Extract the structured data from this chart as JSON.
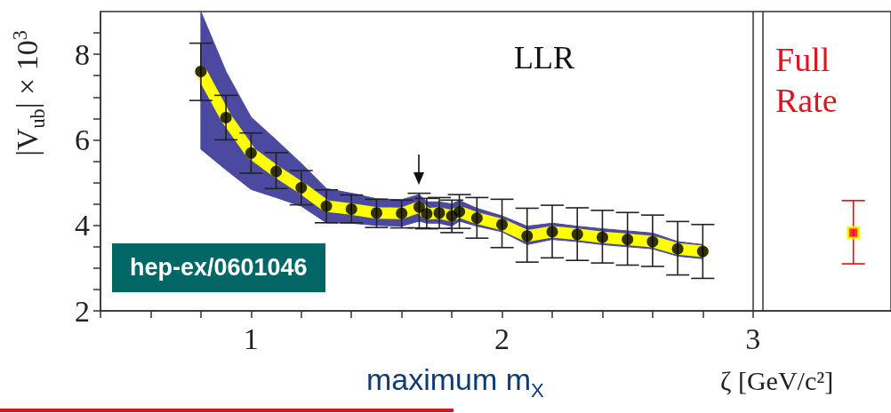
{
  "chart_data": {
    "type": "line",
    "xlabel": "ζ [GeV/c²]",
    "ylabel": "|V$_{ub}$| × 10$^{3}$",
    "annotations": [
      "LLR",
      "Full Rate",
      "hep-ex/0601046",
      "maximum m$_{X}$"
    ],
    "xlim": [
      0.4,
      3.55
    ],
    "xticks": [
      {
        "value": 0.4,
        "label": null
      },
      {
        "value": 0.6,
        "label": null
      },
      {
        "value": 0.8,
        "label": null
      },
      1,
      {
        "value": 1.2,
        "label": null
      },
      {
        "value": 1.4,
        "label": null
      },
      {
        "value": 1.6,
        "label": null
      },
      {
        "value": 1.8,
        "label": null
      },
      2,
      {
        "value": 2.2,
        "label": null
      },
      {
        "value": 2.4,
        "label": null
      },
      {
        "value": 2.6,
        "label": null
      },
      {
        "value": 2.8,
        "label": null
      },
      3
    ],
    "ylim": [
      2,
      9
    ],
    "yticks": [
      2,
      {
        "value": 2.5,
        "label": null
      },
      {
        "value": 3,
        "label": null
      },
      {
        "value": 3.5,
        "label": null
      },
      4,
      {
        "value": 4.5,
        "label": null
      },
      {
        "value": 5,
        "label": null
      },
      {
        "value": 5.5,
        "label": null
      },
      6,
      {
        "value": 6.5,
        "label": null
      },
      {
        "value": 7,
        "label": null
      },
      {
        "value": 7.5,
        "label": null
      },
      8,
      {
        "value": 8.5,
        "label": null
      }
    ],
    "ref_lines": [
      {
        "axis": "x",
        "value": 3.0,
        "color": "#333333"
      },
      {
        "axis": "x",
        "value": 3.04,
        "color": "#333333"
      }
    ],
    "series": [
      {
        "color": "#ffff00",
        "x": [
          0.8,
          0.9,
          1.0,
          1.1,
          1.2,
          1.3,
          1.4,
          1.5,
          1.6,
          1.67,
          1.7,
          1.75,
          1.8,
          1.83,
          1.9,
          2.0,
          2.1,
          2.2,
          2.3,
          2.4,
          2.5,
          2.6,
          2.7,
          2.8
        ],
        "values": [
          7.6,
          6.52,
          5.69,
          5.26,
          4.88,
          4.45,
          4.38,
          4.29,
          4.28,
          4.43,
          4.27,
          4.29,
          4.22,
          4.32,
          4.17,
          4.02,
          3.75,
          3.85,
          3.79,
          3.72,
          3.67,
          3.62,
          3.45,
          3.39
        ],
        "upper": [
          9.0,
          7.6,
          6.53,
          6.0,
          5.45,
          4.86,
          4.75,
          4.62,
          4.6,
          4.72,
          4.55,
          4.55,
          4.5,
          4.58,
          4.4,
          4.22,
          3.98,
          4.05,
          3.98,
          3.92,
          3.87,
          3.82,
          3.62,
          3.55
        ],
        "lower": [
          5.78,
          5.3,
          4.84,
          4.65,
          4.45,
          4.06,
          4.05,
          4.0,
          3.98,
          4.1,
          4.05,
          4.05,
          3.98,
          4.1,
          3.98,
          3.85,
          3.55,
          3.67,
          3.62,
          3.55,
          3.5,
          3.45,
          3.28,
          3.22
        ]
      },
      {
        "type": "scatter",
        "color": "#000000",
        "marker": "circle",
        "x": [
          0.8,
          0.9,
          1.0,
          1.1,
          1.2,
          1.3,
          1.4,
          1.5,
          1.6,
          1.67,
          1.7,
          1.75,
          1.8,
          1.83,
          1.9,
          2.0,
          2.1,
          2.2,
          2.3,
          2.4,
          2.5,
          2.6,
          2.7,
          2.8
        ],
        "values": [
          7.6,
          6.52,
          5.69,
          5.26,
          4.88,
          4.45,
          4.38,
          4.29,
          4.28,
          4.43,
          4.27,
          4.29,
          4.22,
          4.32,
          4.17,
          4.02,
          3.75,
          3.85,
          3.79,
          3.72,
          3.67,
          3.62,
          3.45,
          3.39
        ],
        "errors": [
          [
            6.92,
            8.26
          ],
          [
            6.0,
            7.04
          ],
          [
            5.22,
            6.16
          ],
          [
            4.86,
            5.7
          ],
          [
            4.48,
            5.28
          ],
          [
            4.06,
            4.83
          ],
          [
            4.06,
            4.71
          ],
          [
            3.95,
            4.61
          ],
          [
            3.94,
            4.59
          ],
          [
            3.94,
            4.75
          ],
          [
            3.92,
            4.63
          ],
          [
            3.93,
            4.65
          ],
          [
            3.83,
            4.59
          ],
          [
            3.93,
            4.72
          ],
          [
            3.7,
            4.65
          ],
          [
            3.48,
            4.61
          ],
          [
            3.14,
            4.4
          ],
          [
            3.24,
            4.47
          ],
          [
            3.18,
            4.41
          ],
          [
            3.12,
            4.35
          ],
          [
            3.07,
            4.3
          ],
          [
            3.04,
            4.24
          ],
          [
            2.84,
            4.09
          ],
          [
            2.76,
            4.02
          ]
        ]
      },
      {
        "type": "scatter",
        "color": "#ff0000",
        "marker": "square",
        "x": [
          3.4
        ],
        "values": [
          3.83
        ],
        "errors": [
          [
            3.1,
            4.58
          ]
        ]
      }
    ]
  }
}
